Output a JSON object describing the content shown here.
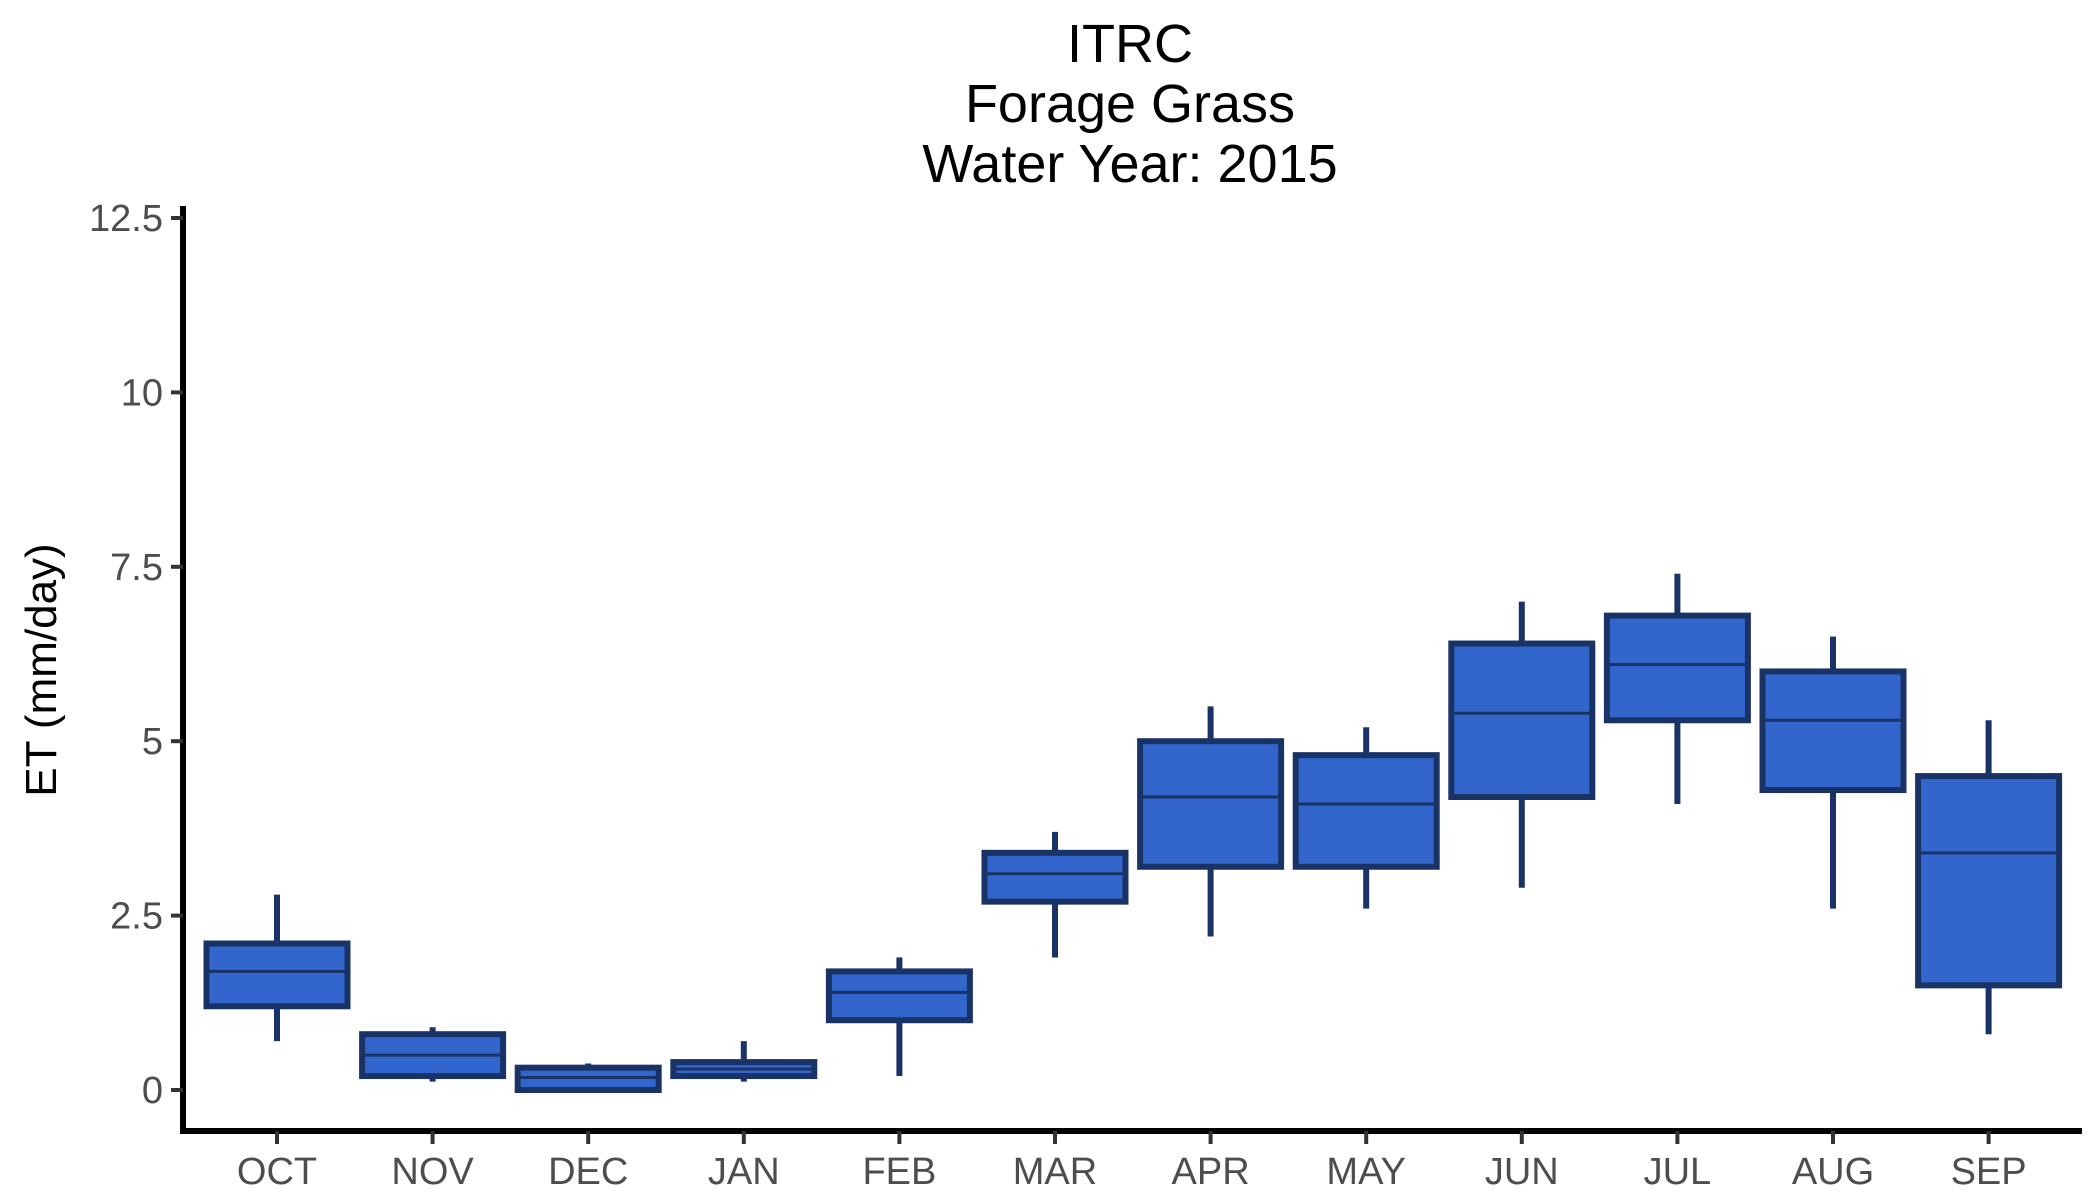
{
  "chart_data": {
    "type": "boxplot",
    "title_lines": [
      "ITRC",
      "Forage Grass",
      "Water Year: 2015"
    ],
    "xlabel": "",
    "ylabel": "ET (mm/day)",
    "ylim": [
      -0.6,
      12.5
    ],
    "yticks": [
      0,
      2.5,
      5,
      7.5,
      10,
      12.5
    ],
    "ytick_labels": [
      "0",
      "2.5",
      "5",
      "7.5",
      "10",
      "12.5"
    ],
    "categories": [
      "OCT",
      "NOV",
      "DEC",
      "JAN",
      "FEB",
      "MAR",
      "APR",
      "MAY",
      "JUN",
      "JUL",
      "AUG",
      "SEP"
    ],
    "boxes": [
      {
        "min": 0.7,
        "q1": 1.2,
        "median": 1.7,
        "q3": 2.1,
        "max": 2.8
      },
      {
        "min": 0.12,
        "q1": 0.2,
        "median": 0.5,
        "q3": 0.8,
        "max": 0.9
      },
      {
        "min": 0.0,
        "q1": 0.0,
        "median": 0.18,
        "q3": 0.32,
        "max": 0.38
      },
      {
        "min": 0.12,
        "q1": 0.2,
        "median": 0.3,
        "q3": 0.4,
        "max": 0.7
      },
      {
        "min": 0.2,
        "q1": 1.0,
        "median": 1.4,
        "q3": 1.7,
        "max": 1.9
      },
      {
        "min": 1.9,
        "q1": 2.7,
        "median": 3.1,
        "q3": 3.4,
        "max": 3.7
      },
      {
        "min": 2.2,
        "q1": 3.2,
        "median": 4.2,
        "q3": 5.0,
        "max": 5.5
      },
      {
        "min": 2.6,
        "q1": 3.2,
        "median": 4.1,
        "q3": 4.8,
        "max": 5.2
      },
      {
        "min": 2.9,
        "q1": 4.2,
        "median": 5.4,
        "q3": 6.4,
        "max": 7.0
      },
      {
        "min": 4.1,
        "q1": 5.3,
        "median": 6.1,
        "q3": 6.8,
        "max": 7.4
      },
      {
        "min": 2.6,
        "q1": 4.3,
        "median": 5.3,
        "q3": 6.0,
        "max": 6.5
      },
      {
        "min": 0.8,
        "q1": 1.5,
        "median": 3.4,
        "q3": 4.5,
        "max": 5.3
      }
    ],
    "box_fill": "#3366cc",
    "box_stroke": "#1a3366",
    "grid": false,
    "legend": "none"
  }
}
